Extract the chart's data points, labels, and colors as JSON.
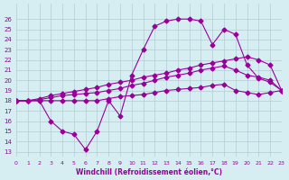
{
  "xlabel": "Windchill (Refroidissement éolien,°C)",
  "ylabel": "",
  "xlim": [
    0,
    23
  ],
  "ylim": [
    13,
    27
  ],
  "yticks": [
    13,
    14,
    15,
    16,
    17,
    18,
    19,
    20,
    21,
    22,
    23,
    24,
    25,
    26
  ],
  "xticks": [
    0,
    1,
    2,
    3,
    4,
    5,
    6,
    7,
    8,
    9,
    10,
    11,
    12,
    13,
    14,
    15,
    16,
    17,
    18,
    19,
    20,
    21,
    22,
    23
  ],
  "bg_color": "#d6eef2",
  "grid_color": "#b0ccd4",
  "line_color": "#990099",
  "line_color2": "#cc33cc",
  "series1_x": [
    0,
    1,
    2,
    3,
    4,
    5,
    6,
    7,
    8,
    9,
    10,
    11,
    12,
    13,
    14,
    15,
    16,
    17,
    18,
    19,
    20,
    21,
    22,
    23
  ],
  "series1_y": [
    18.0,
    18.0,
    18.2,
    18.5,
    18.7,
    18.9,
    19.1,
    19.3,
    19.6,
    19.8,
    20.0,
    20.3,
    20.5,
    20.7,
    21.0,
    21.2,
    21.5,
    21.7,
    21.9,
    22.1,
    22.3,
    22.0,
    21.5,
    19.0
  ],
  "series2_x": [
    0,
    1,
    2,
    3,
    4,
    5,
    6,
    7,
    8,
    9,
    10,
    11,
    12,
    13,
    14,
    15,
    16,
    17,
    18,
    19,
    20,
    21,
    22,
    23
  ],
  "series2_y": [
    18.0,
    18.0,
    18.1,
    18.3,
    18.5,
    18.6,
    18.7,
    18.8,
    19.0,
    19.2,
    19.5,
    19.7,
    20.0,
    20.3,
    20.5,
    20.7,
    21.0,
    21.2,
    21.4,
    21.0,
    20.5,
    20.3,
    20.0,
    19.0
  ],
  "series3_x": [
    0,
    1,
    2,
    3,
    4,
    5,
    6,
    7,
    8,
    9,
    10,
    11,
    12,
    13,
    14,
    15,
    16,
    17,
    18,
    19,
    20,
    21,
    22,
    23
  ],
  "series3_y": [
    18.0,
    18.0,
    18.0,
    16.0,
    15.0,
    14.7,
    13.2,
    15.0,
    18.0,
    16.5,
    20.5,
    23.0,
    25.3,
    25.8,
    26.0,
    26.0,
    25.8,
    23.5,
    25.0,
    24.5,
    21.5,
    20.2,
    19.8,
    19.0
  ],
  "series4_x": [
    0,
    1,
    2,
    3,
    4,
    5,
    6,
    7,
    8,
    9,
    10,
    11,
    12,
    13,
    14,
    15,
    16,
    17,
    18,
    19,
    20,
    21,
    22,
    23
  ],
  "series4_y": [
    18.0,
    18.0,
    18.0,
    18.0,
    18.0,
    18.0,
    18.0,
    18.0,
    18.2,
    18.4,
    18.5,
    18.6,
    18.8,
    19.0,
    19.1,
    19.2,
    19.3,
    19.5,
    19.6,
    19.0,
    18.8,
    18.6,
    18.8,
    19.0
  ]
}
